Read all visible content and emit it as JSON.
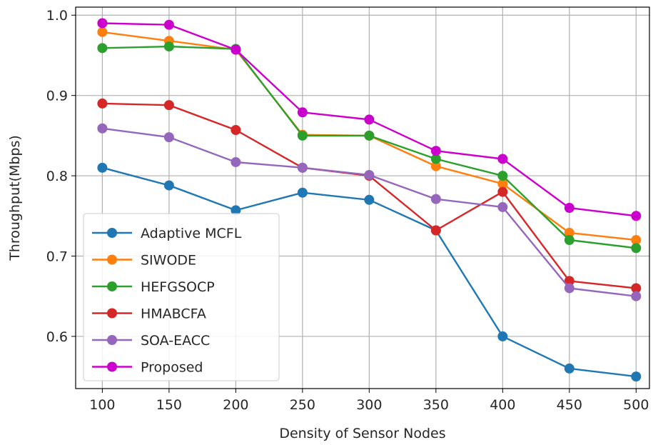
{
  "chart_data": {
    "type": "line",
    "xlabel": "Density of Sensor Nodes",
    "ylabel": "Throughput(Mbps)",
    "x": [
      100,
      150,
      200,
      250,
      300,
      350,
      400,
      450,
      500
    ],
    "xlim": [
      80,
      510
    ],
    "ylim": [
      0.535,
      1.01
    ],
    "xticks": [
      "100",
      "150",
      "200",
      "250",
      "300",
      "350",
      "400",
      "450",
      "500"
    ],
    "yticks": [
      "0.6",
      "0.7",
      "0.8",
      "0.9",
      "1.0"
    ],
    "grid": true,
    "legend_position": "lower-left",
    "series": [
      {
        "name": "Adaptive MCFL",
        "color": "#1f77b4",
        "values": [
          0.81,
          0.788,
          0.757,
          0.779,
          0.77,
          0.732,
          0.6,
          0.56,
          0.55
        ]
      },
      {
        "name": "SIWODE",
        "color": "#ff7f0e",
        "values": [
          0.979,
          0.968,
          0.957,
          0.851,
          0.85,
          0.812,
          0.79,
          0.729,
          0.72
        ]
      },
      {
        "name": "HEFGSOCP",
        "color": "#2ca02c",
        "values": [
          0.959,
          0.961,
          0.958,
          0.85,
          0.85,
          0.821,
          0.8,
          0.72,
          0.71
        ]
      },
      {
        "name": "HMABCFA",
        "color": "#d62728",
        "values": [
          0.89,
          0.888,
          0.857,
          0.81,
          0.8,
          0.732,
          0.78,
          0.669,
          0.66
        ]
      },
      {
        "name": "SOA-EACC",
        "color": "#9467bd",
        "values": [
          0.859,
          0.848,
          0.817,
          0.81,
          0.801,
          0.771,
          0.761,
          0.66,
          0.65
        ]
      },
      {
        "name": "Proposed",
        "color": "#cc00cc",
        "values": [
          0.99,
          0.988,
          0.957,
          0.879,
          0.87,
          0.831,
          0.821,
          0.76,
          0.75
        ]
      }
    ]
  }
}
